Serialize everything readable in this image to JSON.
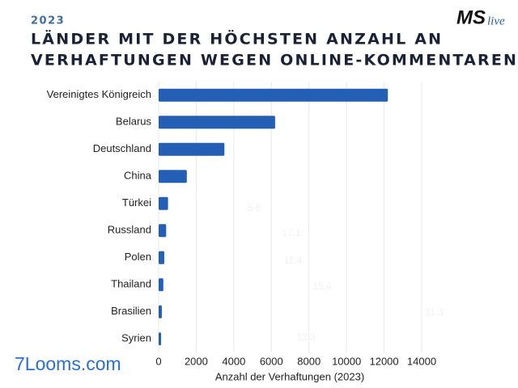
{
  "chart_data": {
    "type": "bar",
    "orientation": "horizontal",
    "subtitle": "2023",
    "title": [
      "LÄNDER MIT DER HÖCHSTEN ANZAHL AN",
      "VERHAFTUNGEN WEGEN ONLINE-KOMMENTAREN:"
    ],
    "logo": [
      "MS",
      "live"
    ],
    "watermark": "7Looms.com",
    "categories": [
      "Vereinigtes Königreich",
      "Belarus",
      "Deutschland",
      "China",
      "Türkei",
      "Russland",
      "Polen",
      "Thailand",
      "Brasilien",
      "Syrien"
    ],
    "values": [
      12200,
      6200,
      3500,
      1500,
      500,
      400,
      300,
      250,
      170,
      130
    ],
    "color": "#2360b5",
    "xlim": [
      0,
      14000
    ],
    "xticks": [
      0,
      2000,
      4000,
      6000,
      8000,
      10000,
      12000,
      14000
    ],
    "xlabel": "Anzahl der Verhaftungen (2023)",
    "grid": true,
    "annotations": [
      "5.6",
      "17.1",
      "11.4",
      "15.4",
      "31.3",
      "13.3"
    ]
  }
}
